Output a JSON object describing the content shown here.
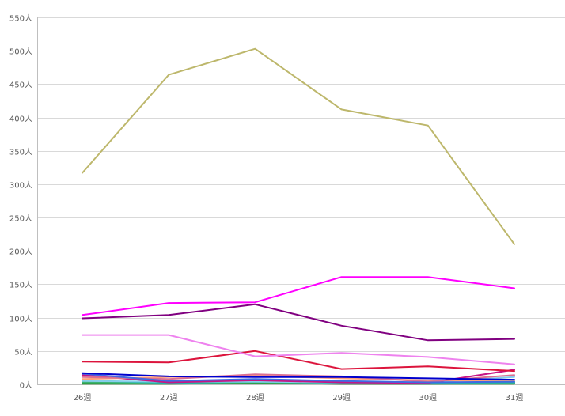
{
  "chart_data": {
    "type": "line",
    "title": "",
    "xlabel": "",
    "ylabel": "",
    "categories": [
      "26週",
      "27週",
      "28週",
      "29週",
      "30週",
      "31週"
    ],
    "ylim": [
      0,
      550
    ],
    "y_ticks": [
      0,
      50,
      100,
      150,
      200,
      250,
      300,
      350,
      400,
      450,
      500,
      550
    ],
    "y_unit": "人",
    "grid": true,
    "legend": "none",
    "series": [
      {
        "color": "#bdb76b",
        "values": [
          317,
          464,
          503,
          412,
          388,
          210
        ]
      },
      {
        "color": "#ff00ff",
        "values": [
          104,
          122,
          123,
          161,
          161,
          144
        ]
      },
      {
        "color": "#800080",
        "values": [
          99,
          104,
          120,
          88,
          66,
          68
        ]
      },
      {
        "color": "#ee82ee",
        "values": [
          74,
          74,
          42,
          47,
          41,
          30
        ]
      },
      {
        "color": "#dc143c",
        "values": [
          34,
          33,
          50,
          23,
          27,
          20
        ]
      },
      {
        "color": "#0000cd",
        "values": [
          17,
          12,
          11,
          11,
          9,
          7
        ]
      },
      {
        "color": "#4169e1",
        "values": [
          16,
          5,
          8,
          5,
          3,
          4
        ]
      },
      {
        "color": "#db7093",
        "values": [
          11,
          8,
          15,
          12,
          4,
          14
        ]
      },
      {
        "color": "#ffa07a",
        "values": [
          8,
          11,
          13,
          9,
          6,
          5
        ]
      },
      {
        "color": "#c71585",
        "values": [
          14,
          3,
          6,
          3,
          2,
          22
        ]
      },
      {
        "color": "#87ceeb",
        "values": [
          5,
          4,
          4,
          3,
          3,
          11
        ]
      },
      {
        "color": "#20b2aa",
        "values": [
          6,
          2,
          4,
          2,
          2,
          3
        ]
      },
      {
        "color": "#3cb371",
        "values": [
          3,
          2,
          3,
          2,
          1,
          2
        ]
      },
      {
        "color": "#228b22",
        "values": [
          1,
          1,
          2,
          1,
          1,
          1
        ]
      },
      {
        "color": "#808080",
        "values": [
          2,
          2,
          2,
          1,
          1,
          2
        ]
      }
    ]
  }
}
